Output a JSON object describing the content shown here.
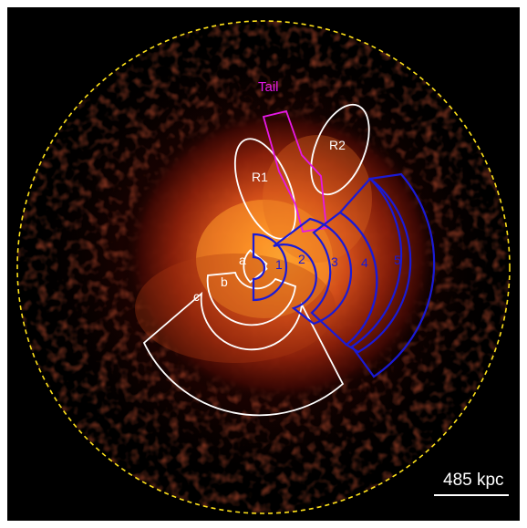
{
  "labels": {
    "tail": "Tail",
    "r1": "R1",
    "r2": "R2",
    "a": "a",
    "b": "b",
    "c": "c",
    "s1": "1",
    "s2": "2",
    "s3": "3",
    "s4": "4",
    "s5": "5"
  },
  "scale_bar": {
    "label": "485 kpc"
  },
  "colors": {
    "background": "#000000",
    "emission_core": "#ff9a2a",
    "emission_mid": "#d2481a",
    "emission_outer": "#5a0c05",
    "dashed_circle": "#ffe21a",
    "white_regions": "#ffffff",
    "blue_sectors": "#1a1ad6",
    "tail_region": "#e619e6"
  }
}
